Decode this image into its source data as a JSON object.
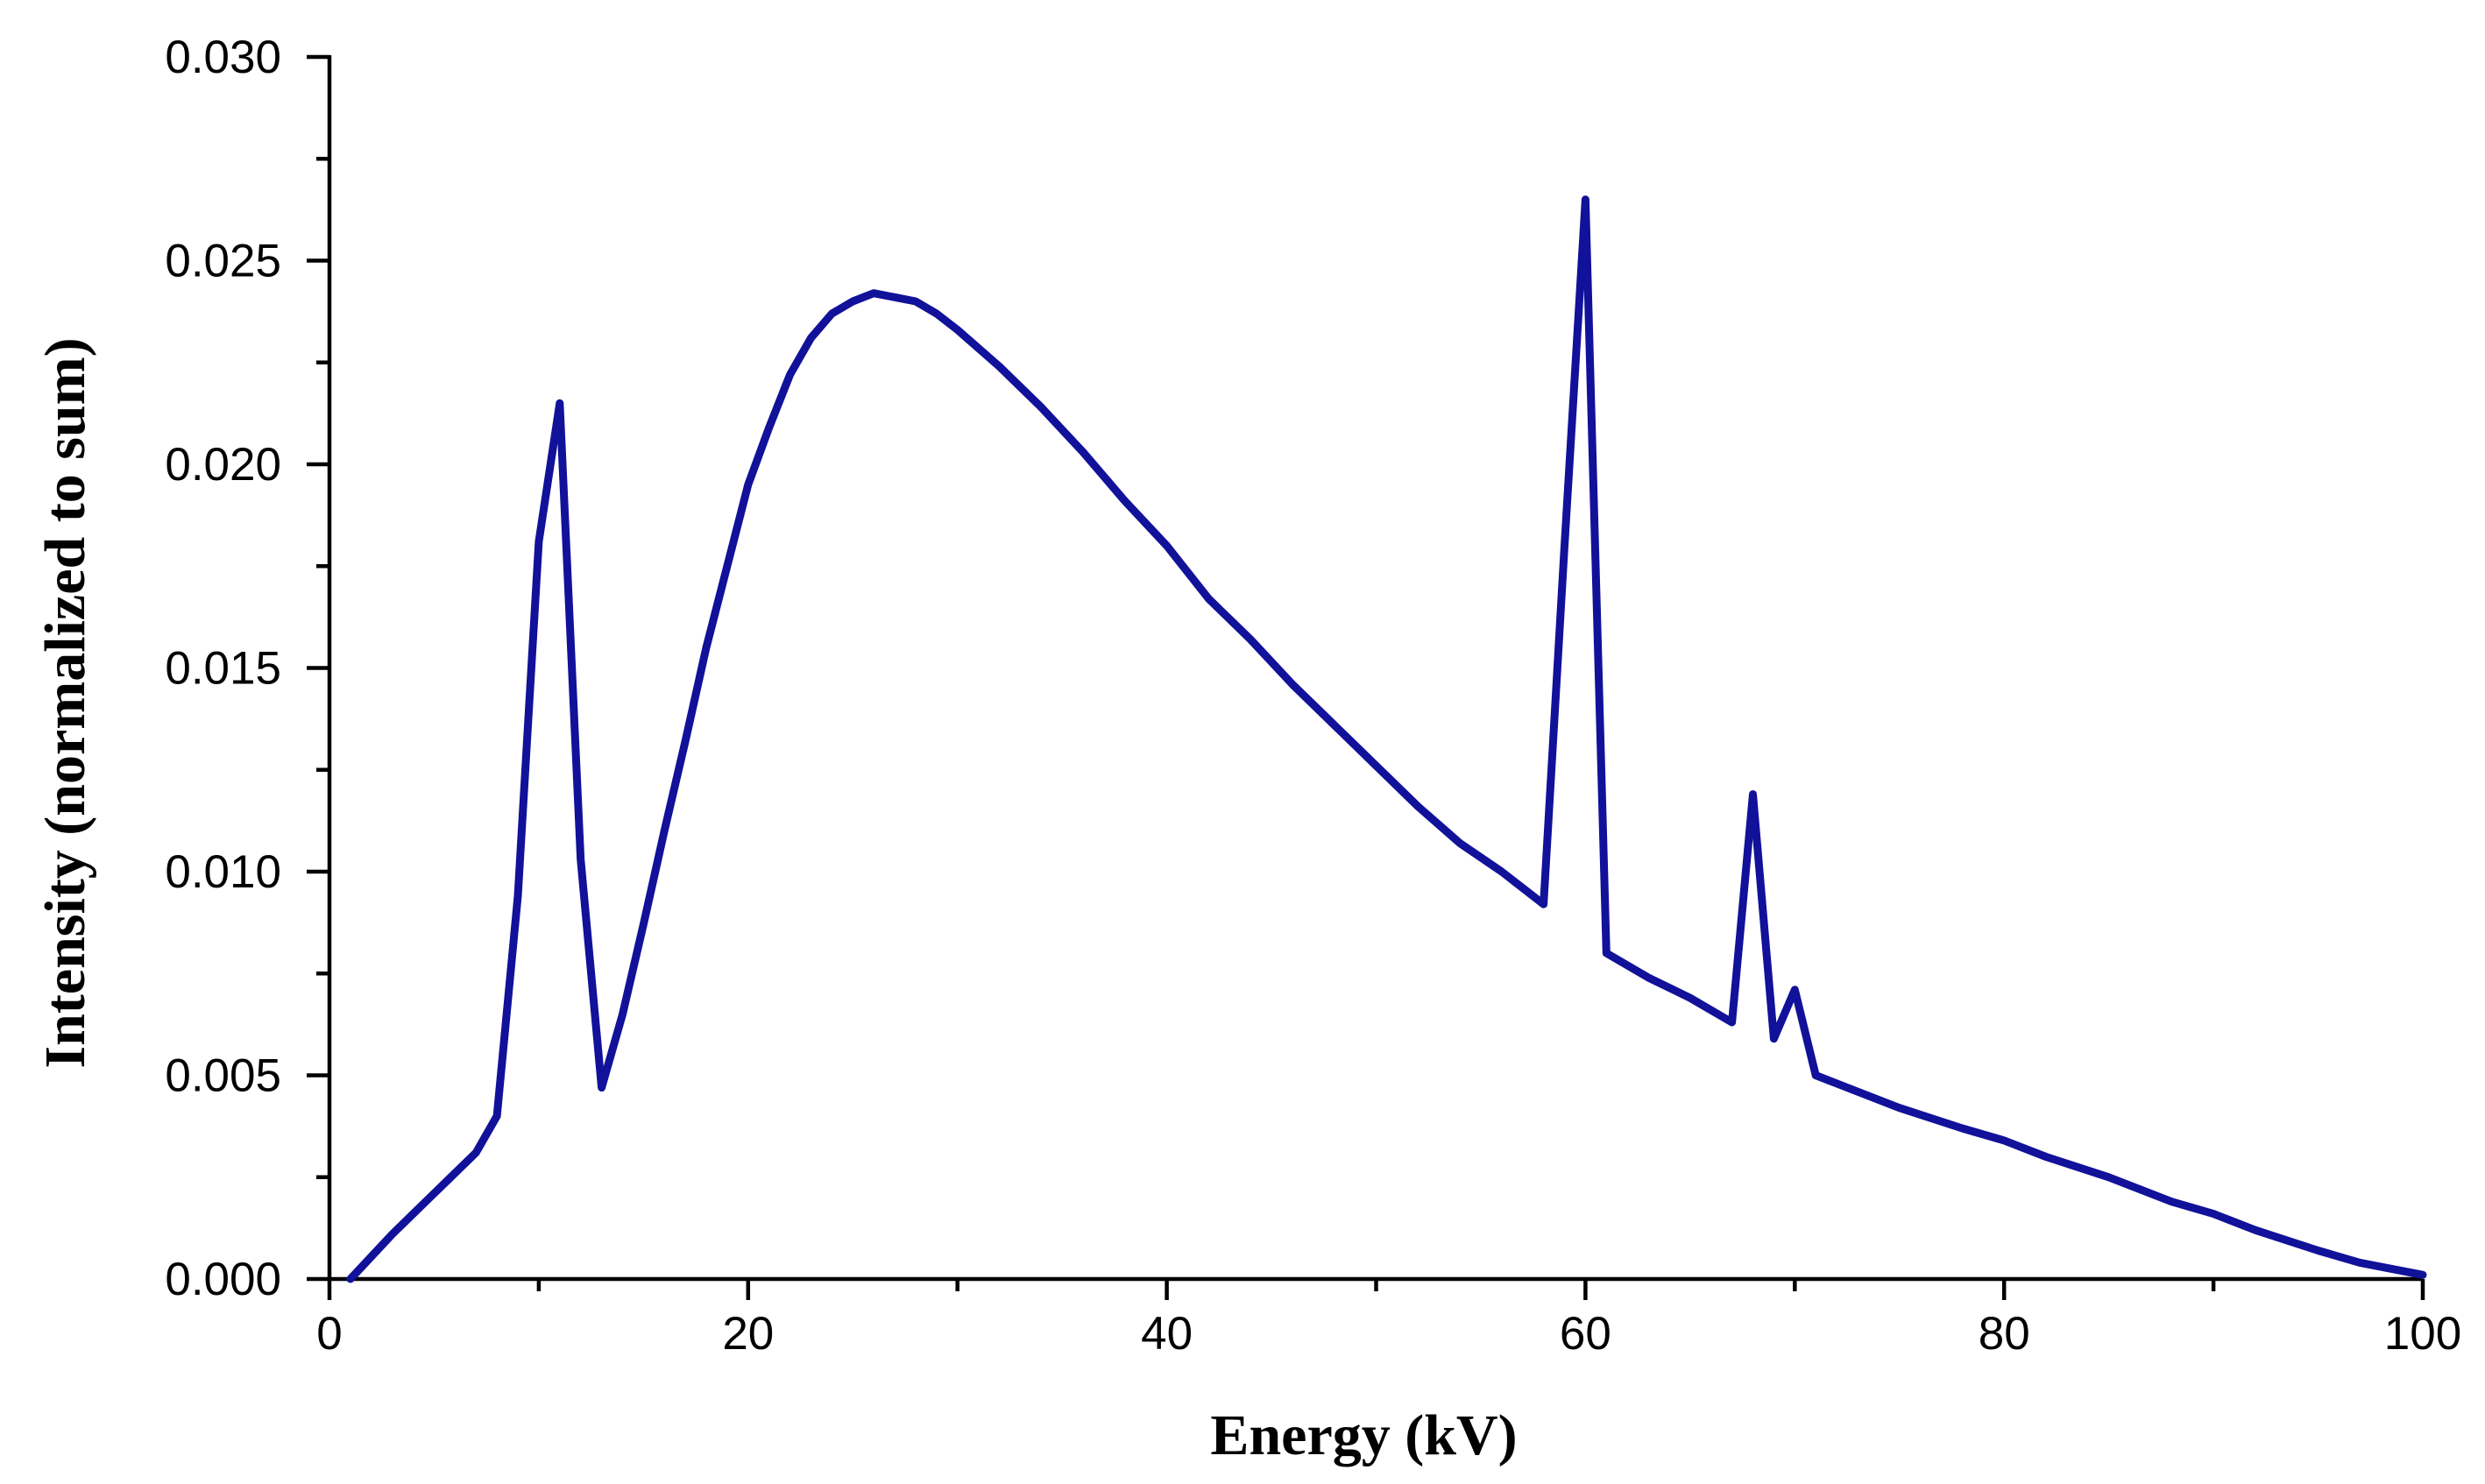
{
  "chart_data": {
    "type": "line",
    "title": "",
    "xlabel": "Energy (kV)",
    "ylabel": "Intensity (normalized to sum)",
    "xlim": [
      0,
      100
    ],
    "ylim": [
      0,
      0.03
    ],
    "x_major_ticks": [
      0,
      20,
      40,
      60,
      80,
      100
    ],
    "x_minor_step": 10,
    "y_major_ticks": [
      0,
      0.005,
      0.01,
      0.015,
      0.02,
      0.025,
      0.03
    ],
    "y_minor_step": 0.0025,
    "x_tick_labels": [
      "0",
      "20",
      "40",
      "60",
      "80",
      "100"
    ],
    "y_tick_labels": [
      "0.000",
      "0.005",
      "0.010",
      "0.015",
      "0.020",
      "0.025",
      "0.030"
    ],
    "grid": false,
    "legend": "none",
    "series": [
      {
        "name": "spectrum",
        "color": "#11119a",
        "x": [
          1,
          3,
          5,
          7,
          8,
          9,
          10,
          11,
          12,
          13,
          14,
          15,
          16,
          17,
          18,
          19,
          20,
          21,
          22,
          23,
          24,
          25,
          26,
          27,
          28,
          29,
          30,
          32,
          34,
          36,
          38,
          40,
          42,
          44,
          46,
          48,
          50,
          52,
          54,
          56,
          58,
          59,
          60,
          61,
          63,
          65,
          67,
          68,
          69,
          70,
          71,
          72,
          75,
          78,
          80,
          82,
          85,
          88,
          90,
          92,
          95,
          97,
          99,
          100
        ],
        "y": [
          0.0,
          0.0011,
          0.0021,
          0.0031,
          0.004,
          0.0094,
          0.0181,
          0.0215,
          0.0103,
          0.0047,
          0.0065,
          0.0087,
          0.011,
          0.0132,
          0.0155,
          0.0175,
          0.0195,
          0.0209,
          0.0222,
          0.0231,
          0.0237,
          0.024,
          0.0242,
          0.0241,
          0.024,
          0.0237,
          0.0233,
          0.0224,
          0.0214,
          0.0203,
          0.0191,
          0.018,
          0.0167,
          0.0157,
          0.0146,
          0.0136,
          0.0126,
          0.0116,
          0.0107,
          0.01,
          0.0092,
          0.018,
          0.0265,
          0.008,
          0.0074,
          0.0069,
          0.0063,
          0.0119,
          0.0059,
          0.0071,
          0.005,
          0.0048,
          0.0042,
          0.0037,
          0.0034,
          0.003,
          0.0025,
          0.0019,
          0.0016,
          0.0012,
          0.0007,
          0.0004,
          0.0002,
          0.0001
        ]
      }
    ]
  }
}
